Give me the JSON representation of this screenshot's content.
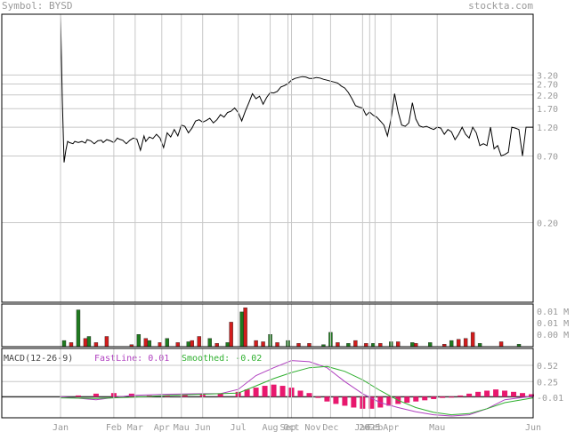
{
  "header": {
    "symbol_label": "Symbol: BYSD",
    "site_label": "stockta.com"
  },
  "macd_header": {
    "title": "MACD(12-26-9)",
    "fastline": "FastLine: 0.01",
    "smoothed": "Smoothed: -0.02"
  },
  "colors": {
    "grid": "#c8c8c8",
    "price_line": "#000000",
    "volume_up": "#1f7a1f",
    "volume_down": "#d21c1c",
    "fastline": "#b040c0",
    "smoothed": "#30b030",
    "histogram": "#e8186e",
    "axis_text": "#9a9a9a"
  },
  "chart_data": [
    {
      "type": "line",
      "panel": "price",
      "scale": "log",
      "y_ticks": [
        "3.20",
        "2.70",
        "2.20",
        "1.70",
        "1.20",
        "0.70",
        "0.20"
      ],
      "y_tick_values": [
        3.2,
        2.7,
        2.2,
        1.7,
        1.2,
        0.7,
        0.2
      ],
      "ylim": [
        0.045,
        10
      ],
      "x_ticks": [
        "Jan",
        "Feb",
        "Mar",
        "Apr",
        "Mau",
        "Jun",
        "Jul",
        "Aug",
        "Sep",
        "Oct",
        "Nov",
        "Dec",
        "Jan",
        "2025",
        "Feb",
        "Apr",
        "Mau",
        "Jun"
      ],
      "series": [
        {
          "x": [
            0,
            1,
            2,
            3,
            4,
            5,
            7,
            8,
            10,
            12,
            14,
            15,
            17,
            19,
            21,
            23,
            24,
            26,
            28,
            30,
            32,
            33,
            35,
            37,
            39,
            41,
            43,
            45,
            47,
            48,
            50,
            52,
            54,
            56,
            58,
            60,
            62,
            64,
            66,
            68,
            70,
            72,
            74,
            76,
            78,
            80,
            82,
            84,
            86,
            88,
            90,
            92,
            94,
            96,
            98,
            100,
            102,
            104,
            106,
            108,
            110,
            112,
            114,
            116,
            118,
            120,
            122,
            124,
            126,
            128,
            130,
            132,
            134,
            136,
            138,
            140,
            142,
            144,
            146,
            148,
            150,
            152,
            154,
            156,
            158,
            160,
            162,
            164,
            166,
            168,
            170,
            172,
            174,
            176,
            178,
            180,
            182,
            184,
            186,
            188,
            190,
            192,
            194,
            196,
            198,
            200,
            202,
            204,
            206,
            208,
            210,
            212,
            214,
            216,
            218,
            220,
            222,
            224,
            226,
            228,
            230,
            232,
            234,
            236,
            238,
            240,
            242,
            244,
            246,
            248,
            250,
            252,
            254,
            256,
            258,
            260,
            262,
            264,
            266
          ],
          "y": [
            10,
            2.0,
            0.62,
            0.78,
            0.92,
            0.9,
            0.88,
            0.92,
            0.9,
            0.92,
            0.89,
            0.95,
            0.93,
            0.88,
            0.93,
            0.94,
            0.9,
            0.95,
            0.93,
            0.9,
            0.98,
            0.96,
            0.94,
            0.88,
            0.94,
            0.98,
            0.96,
            0.78,
            1.02,
            0.92,
            1.0,
            0.97,
            1.05,
            0.98,
            0.82,
            1.08,
            1.0,
            1.15,
            1.02,
            1.25,
            1.22,
            1.08,
            1.18,
            1.35,
            1.38,
            1.32,
            1.36,
            1.42,
            1.3,
            1.38,
            1.52,
            1.45,
            1.58,
            1.62,
            1.72,
            1.58,
            1.35,
            1.62,
            1.9,
            2.25,
            2.05,
            2.15,
            1.85,
            2.1,
            2.3,
            2.28,
            2.35,
            2.55,
            2.62,
            2.72,
            2.9,
            3.0,
            3.05,
            3.1,
            3.08,
            3.0,
            3.0,
            3.05,
            3.02,
            2.95,
            2.9,
            2.85,
            2.8,
            2.75,
            2.6,
            2.5,
            2.3,
            2.05,
            1.8,
            1.75,
            1.72,
            1.5,
            1.6,
            1.5,
            1.45,
            1.35,
            1.25,
            1.02,
            1.4,
            2.25,
            1.6,
            1.25,
            1.22,
            1.3,
            1.9,
            1.4,
            1.23,
            1.2,
            1.22,
            1.18,
            1.15,
            1.2,
            1.18,
            1.05,
            1.15,
            1.1,
            0.95,
            1.05,
            1.2,
            1.05,
            0.98,
            1.2,
            1.08,
            0.85,
            0.88,
            0.85,
            1.2,
            0.8,
            0.85,
            0.7,
            0.72,
            0.75,
            1.2,
            1.18,
            1.15,
            0.7,
            1.2,
            1.2,
            1.2
          ]
        }
      ]
    },
    {
      "type": "bar",
      "panel": "volume",
      "y_ticks": [
        "0.01 M",
        "0.01 M",
        "0.00 M"
      ],
      "series": [
        {
          "name": "up",
          "x": [
            2,
            10,
            16,
            44,
            50,
            60,
            72,
            84,
            94,
            102,
            118,
            128,
            148,
            152,
            162,
            176,
            186,
            198,
            208,
            220,
            236,
            258
          ],
          "values": [
            0.15,
            0.9,
            0.25,
            0.3,
            0.15,
            0.2,
            0.12,
            0.2,
            0.1,
            0.85,
            0.3,
            0.15,
            0.05,
            0.35,
            0.08,
            0.08,
            0.12,
            0.1,
            0.1,
            0.15,
            0.08,
            0.06
          ]
        },
        {
          "name": "down",
          "x": [
            6,
            14,
            20,
            26,
            40,
            48,
            56,
            66,
            74,
            78,
            88,
            96,
            104,
            110,
            114,
            122,
            134,
            140,
            156,
            166,
            172,
            180,
            190,
            200,
            216,
            224,
            228,
            232,
            248
          ],
          "values": [
            0.1,
            0.2,
            0.1,
            0.25,
            0.05,
            0.2,
            0.1,
            0.1,
            0.15,
            0.25,
            0.08,
            0.6,
            0.95,
            0.15,
            0.12,
            0.1,
            0.08,
            0.08,
            0.1,
            0.15,
            0.08,
            0.08,
            0.12,
            0.08,
            0.06,
            0.18,
            0.2,
            0.35,
            0.12
          ]
        }
      ]
    },
    {
      "type": "line",
      "panel": "macd",
      "y_ticks": [
        "0.52",
        "0.25",
        "-0.01"
      ],
      "ylim": [
        -0.35,
        0.8
      ],
      "series": [
        {
          "name": "FastLine",
          "x": [
            0,
            20,
            40,
            60,
            80,
            90,
            100,
            110,
            120,
            130,
            140,
            150,
            160,
            170,
            180,
            190,
            200,
            210,
            220,
            230,
            240,
            250,
            266
          ],
          "values": [
            0.0,
            -0.05,
            0.02,
            0.04,
            0.05,
            0.05,
            0.12,
            0.35,
            0.48,
            0.6,
            0.58,
            0.48,
            0.25,
            0.05,
            -0.1,
            -0.18,
            -0.25,
            -0.3,
            -0.32,
            -0.3,
            -0.2,
            -0.05,
            0.01
          ]
        },
        {
          "name": "Smoothed",
          "x": [
            0,
            20,
            40,
            60,
            80,
            100,
            110,
            120,
            130,
            140,
            150,
            160,
            170,
            180,
            190,
            200,
            210,
            220,
            230,
            240,
            250,
            266
          ],
          "values": [
            -0.02,
            -0.03,
            -0.01,
            0.02,
            0.04,
            0.06,
            0.18,
            0.3,
            0.4,
            0.48,
            0.5,
            0.42,
            0.28,
            0.1,
            -0.06,
            -0.18,
            -0.26,
            -0.3,
            -0.28,
            -0.2,
            -0.1,
            -0.02
          ]
        },
        {
          "name": "histogram",
          "type": "bar",
          "x": [
            10,
            20,
            30,
            40,
            50,
            60,
            70,
            80,
            90,
            100,
            105,
            110,
            115,
            120,
            125,
            130,
            135,
            140,
            145,
            150,
            155,
            160,
            165,
            170,
            175,
            180,
            185,
            190,
            195,
            200,
            205,
            210,
            215,
            220,
            225,
            230,
            235,
            240,
            245,
            250,
            255,
            260,
            265
          ],
          "values": [
            0.02,
            0.05,
            0.06,
            0.05,
            0.02,
            0.02,
            0.03,
            0.04,
            0.05,
            0.08,
            0.12,
            0.15,
            0.18,
            0.2,
            0.18,
            0.15,
            0.1,
            0.06,
            -0.02,
            -0.08,
            -0.12,
            -0.15,
            -0.18,
            -0.2,
            -0.2,
            -0.18,
            -0.15,
            -0.12,
            -0.1,
            -0.08,
            -0.06,
            -0.04,
            -0.02,
            0.0,
            0.02,
            0.05,
            0.08,
            0.1,
            0.12,
            0.1,
            0.08,
            0.06,
            0.04
          ]
        }
      ]
    }
  ]
}
